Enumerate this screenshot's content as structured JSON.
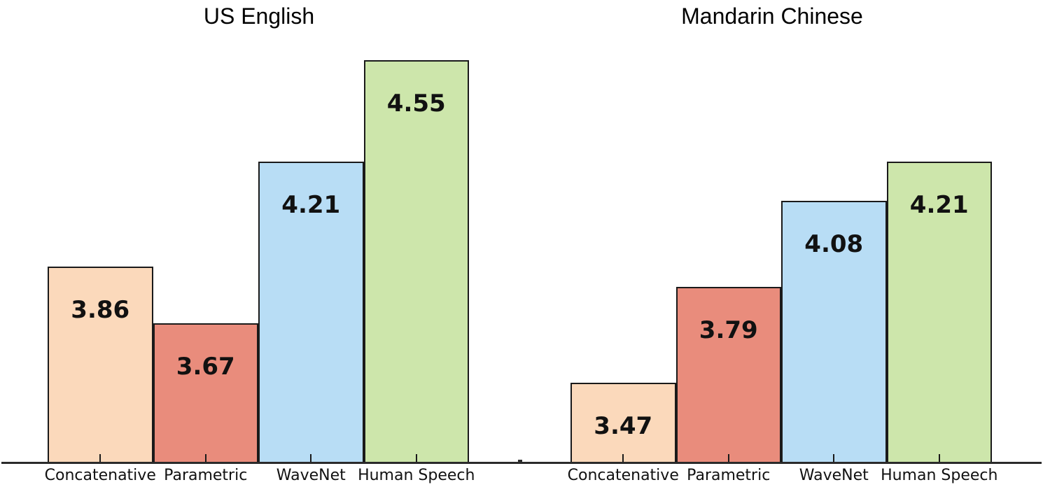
{
  "chart_data": {
    "type": "bar",
    "categories": [
      "Concatenative",
      "Parametric",
      "WaveNet",
      "Human Speech"
    ],
    "titles": [
      "US English",
      "Mandarin Chinese"
    ],
    "series": [
      {
        "name": "US English",
        "values": [
          3.86,
          3.67,
          4.21,
          4.55
        ]
      },
      {
        "name": "Mandarin Chinese",
        "values": [
          3.47,
          3.79,
          4.08,
          4.21
        ]
      }
    ],
    "value_labels": [
      [
        "3.86",
        "3.67",
        "4.21",
        "4.55"
      ],
      [
        "3.47",
        "3.79",
        "4.08",
        "4.21"
      ]
    ],
    "xlabel": "",
    "ylabel": "",
    "ylim": [
      3.2,
      4.75
    ],
    "grid": false,
    "legend": "none",
    "bar_colors": [
      "#FBD9BB",
      "#E98C7C",
      "#B8DDF5",
      "#CDE6AB"
    ],
    "bar_edge_color": "#1a1a1a",
    "axis_color": "#2b2b2b",
    "label_color": "#111111"
  }
}
